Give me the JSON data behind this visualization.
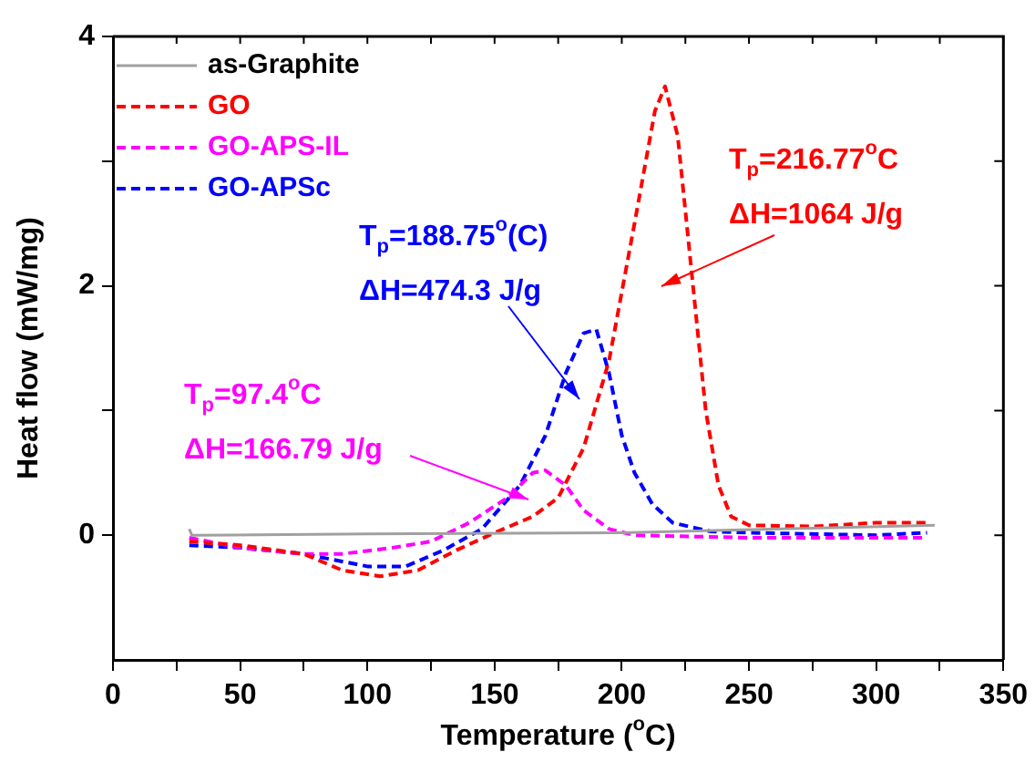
{
  "chart_data": {
    "type": "line",
    "xlabel": "Temperature ($^{o}$C)",
    "ylabel": "Heat flow (mW/mg)",
    "xlim": [
      0,
      350
    ],
    "xticks": [
      0,
      {
        "value": 25,
        "label": null
      },
      50,
      {
        "value": 75,
        "label": null
      },
      100,
      {
        "value": 125,
        "label": null
      },
      150,
      {
        "value": 175,
        "label": null
      },
      200,
      {
        "value": 225,
        "label": null
      },
      250,
      {
        "value": 275,
        "label": null
      },
      300,
      {
        "value": 325,
        "label": null
      },
      350
    ],
    "ylim": [
      -1,
      4
    ],
    "yticks": [
      0,
      {
        "value": 1,
        "label": null
      },
      2,
      {
        "value": 3,
        "label": null
      },
      4
    ],
    "legend": "top left",
    "marker": "none",
    "grid": false,
    "series": [
      {
        "name": "as-Graphite",
        "color": "#a0a0a0",
        "line_style": "solid",
        "x": [
          30,
          31,
          100,
          200,
          323
        ],
        "values": [
          0.05,
          0.0,
          0.01,
          0.02,
          0.08
        ]
      },
      {
        "name": "GO",
        "color": "#ff0000",
        "line_style": "dashed",
        "x": [
          30,
          50,
          75,
          90,
          105,
          120,
          135,
          150,
          165,
          175,
          185,
          195,
          205,
          213,
          217,
          222,
          228,
          233,
          238,
          243,
          250,
          275,
          300,
          320
        ],
        "values": [
          -0.05,
          -0.08,
          -0.15,
          -0.28,
          -0.33,
          -0.28,
          -0.12,
          0.02,
          0.15,
          0.3,
          0.7,
          1.4,
          2.5,
          3.4,
          3.6,
          3.2,
          2.0,
          1.0,
          0.4,
          0.15,
          0.08,
          0.07,
          0.1,
          0.1
        ]
      },
      {
        "name": "GO-APS-IL",
        "color": "#ff00ff",
        "line_style": "dashed",
        "x": [
          30,
          50,
          75,
          90,
          110,
          125,
          140,
          155,
          165,
          170,
          178,
          185,
          195,
          205,
          250,
          320
        ],
        "values": [
          -0.02,
          -0.1,
          -0.15,
          -0.15,
          -0.1,
          -0.05,
          0.1,
          0.3,
          0.5,
          0.52,
          0.4,
          0.2,
          0.05,
          0.0,
          -0.02,
          -0.02
        ]
      },
      {
        "name": "GO-APSc",
        "color": "#0000ff",
        "line_style": "dashed",
        "x": [
          30,
          50,
          75,
          100,
          115,
          130,
          145,
          160,
          170,
          178,
          185,
          190,
          195,
          200,
          205,
          212,
          220,
          235,
          250,
          300,
          320
        ],
        "values": [
          -0.08,
          -0.1,
          -0.15,
          -0.25,
          -0.25,
          -0.12,
          0.05,
          0.4,
          0.8,
          1.3,
          1.62,
          1.65,
          1.3,
          0.8,
          0.5,
          0.25,
          0.1,
          0.03,
          0.02,
          0.0,
          0.02
        ]
      }
    ],
    "annotations": [
      "T$_{p}$=216.77$^{o}$C\nΔH=1064 J/g",
      "T$_{p}$=97.4$^{o}$C\nΔH=166.79 J/g",
      "T$_{p}$=188.75$^{o}$(C)\nΔH=474.3 J/g"
    ]
  }
}
